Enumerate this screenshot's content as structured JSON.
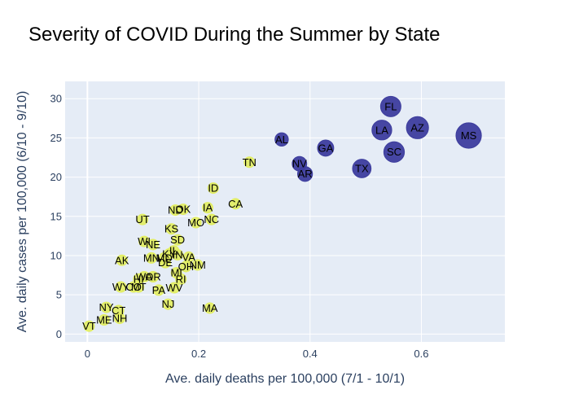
{
  "chart_data": {
    "type": "scatter",
    "title": "Severity of COVID During the Summer by State",
    "xlabel": "Ave. daily deaths per 100,000 (7/1 - 10/1)",
    "ylabel": "Ave. daily cases per 100,000 (6/10 - 9/10)",
    "xlim": [
      -0.04,
      0.75
    ],
    "ylim": [
      -1,
      32.2
    ],
    "xticks": [
      0,
      0.2,
      0.4,
      0.6
    ],
    "xtick_labels": [
      "0",
      "0.2",
      "0.4",
      "0.6"
    ],
    "yticks": [
      0,
      5,
      10,
      15,
      20,
      25,
      30
    ],
    "ytick_labels": [
      "0",
      "5",
      "10",
      "15",
      "20",
      "25",
      "30"
    ],
    "grid": true,
    "colors": {
      "high": "#3d3d9e",
      "low": "#e2ee5f",
      "plot_bg": "#e5ecf6",
      "grid": "#ffffff"
    },
    "points": [
      {
        "label": "FL",
        "x": 0.545,
        "y": 29.0,
        "group": "high"
      },
      {
        "label": "AZ",
        "x": 0.593,
        "y": 26.3,
        "group": "high"
      },
      {
        "label": "MS",
        "x": 0.685,
        "y": 25.3,
        "group": "high"
      },
      {
        "label": "LA",
        "x": 0.529,
        "y": 26.0,
        "group": "high"
      },
      {
        "label": "AL",
        "x": 0.349,
        "y": 24.8,
        "group": "high"
      },
      {
        "label": "GA",
        "x": 0.428,
        "y": 23.7,
        "group": "high"
      },
      {
        "label": "SC",
        "x": 0.551,
        "y": 23.2,
        "group": "high"
      },
      {
        "label": "NV",
        "x": 0.381,
        "y": 21.7,
        "group": "high"
      },
      {
        "label": "TX",
        "x": 0.493,
        "y": 21.1,
        "group": "high"
      },
      {
        "label": "AR",
        "x": 0.391,
        "y": 20.4,
        "group": "high"
      },
      {
        "label": "TN",
        "x": 0.291,
        "y": 21.9,
        "group": "low"
      },
      {
        "label": "ID",
        "x": 0.226,
        "y": 18.6,
        "group": "low"
      },
      {
        "label": "CA",
        "x": 0.266,
        "y": 16.6,
        "group": "low"
      },
      {
        "label": "IA",
        "x": 0.216,
        "y": 16.1,
        "group": "low"
      },
      {
        "label": "OK",
        "x": 0.172,
        "y": 15.9,
        "group": "low"
      },
      {
        "label": "ND",
        "x": 0.158,
        "y": 15.8,
        "group": "low"
      },
      {
        "label": "NC",
        "x": 0.223,
        "y": 14.6,
        "group": "low"
      },
      {
        "label": "MO",
        "x": 0.195,
        "y": 14.2,
        "group": "low"
      },
      {
        "label": "UT",
        "x": 0.099,
        "y": 14.6,
        "group": "low"
      },
      {
        "label": "KS",
        "x": 0.151,
        "y": 13.4,
        "group": "low"
      },
      {
        "label": "SD",
        "x": 0.162,
        "y": 12.0,
        "group": "low"
      },
      {
        "label": "WI",
        "x": 0.102,
        "y": 11.8,
        "group": "low"
      },
      {
        "label": "NE",
        "x": 0.118,
        "y": 11.4,
        "group": "low"
      },
      {
        "label": "IL",
        "x": 0.155,
        "y": 10.6,
        "group": "low"
      },
      {
        "label": "KY",
        "x": 0.147,
        "y": 10.2,
        "group": "low"
      },
      {
        "label": "IN",
        "x": 0.162,
        "y": 10.1,
        "group": "low"
      },
      {
        "label": "VA",
        "x": 0.182,
        "y": 9.8,
        "group": "low"
      },
      {
        "label": "MN",
        "x": 0.115,
        "y": 9.7,
        "group": "low"
      },
      {
        "label": "MD",
        "x": 0.138,
        "y": 9.7,
        "group": "low"
      },
      {
        "label": "DE",
        "x": 0.14,
        "y": 9.1,
        "group": "low"
      },
      {
        "label": "OH",
        "x": 0.177,
        "y": 8.6,
        "group": "low"
      },
      {
        "label": "NM",
        "x": 0.198,
        "y": 8.8,
        "group": "low"
      },
      {
        "label": "AK",
        "x": 0.062,
        "y": 9.4,
        "group": "low"
      },
      {
        "label": "MI",
        "x": 0.16,
        "y": 7.8,
        "group": "low"
      },
      {
        "label": "RI",
        "x": 0.168,
        "y": 7.0,
        "group": "low"
      },
      {
        "label": "WA",
        "x": 0.102,
        "y": 7.3,
        "group": "low"
      },
      {
        "label": "OR",
        "x": 0.118,
        "y": 7.3,
        "group": "low"
      },
      {
        "label": "HI",
        "x": 0.092,
        "y": 7.0,
        "group": "low"
      },
      {
        "label": "WY",
        "x": 0.06,
        "y": 6.0,
        "group": "low"
      },
      {
        "label": "CO",
        "x": 0.083,
        "y": 6.0,
        "group": "low"
      },
      {
        "label": "MT",
        "x": 0.092,
        "y": 6.0,
        "group": "low"
      },
      {
        "label": "WV",
        "x": 0.156,
        "y": 5.9,
        "group": "low"
      },
      {
        "label": "PA",
        "x": 0.128,
        "y": 5.6,
        "group": "low"
      },
      {
        "label": "NJ",
        "x": 0.145,
        "y": 3.8,
        "group": "low"
      },
      {
        "label": "MA",
        "x": 0.22,
        "y": 3.3,
        "group": "low"
      },
      {
        "label": "NY",
        "x": 0.034,
        "y": 3.4,
        "group": "low"
      },
      {
        "label": "CT",
        "x": 0.056,
        "y": 3.0,
        "group": "low"
      },
      {
        "label": "NH",
        "x": 0.058,
        "y": 2.0,
        "group": "low"
      },
      {
        "label": "ME",
        "x": 0.03,
        "y": 1.8,
        "group": "low"
      },
      {
        "label": "VT",
        "x": 0.003,
        "y": 1.0,
        "group": "low"
      }
    ]
  }
}
